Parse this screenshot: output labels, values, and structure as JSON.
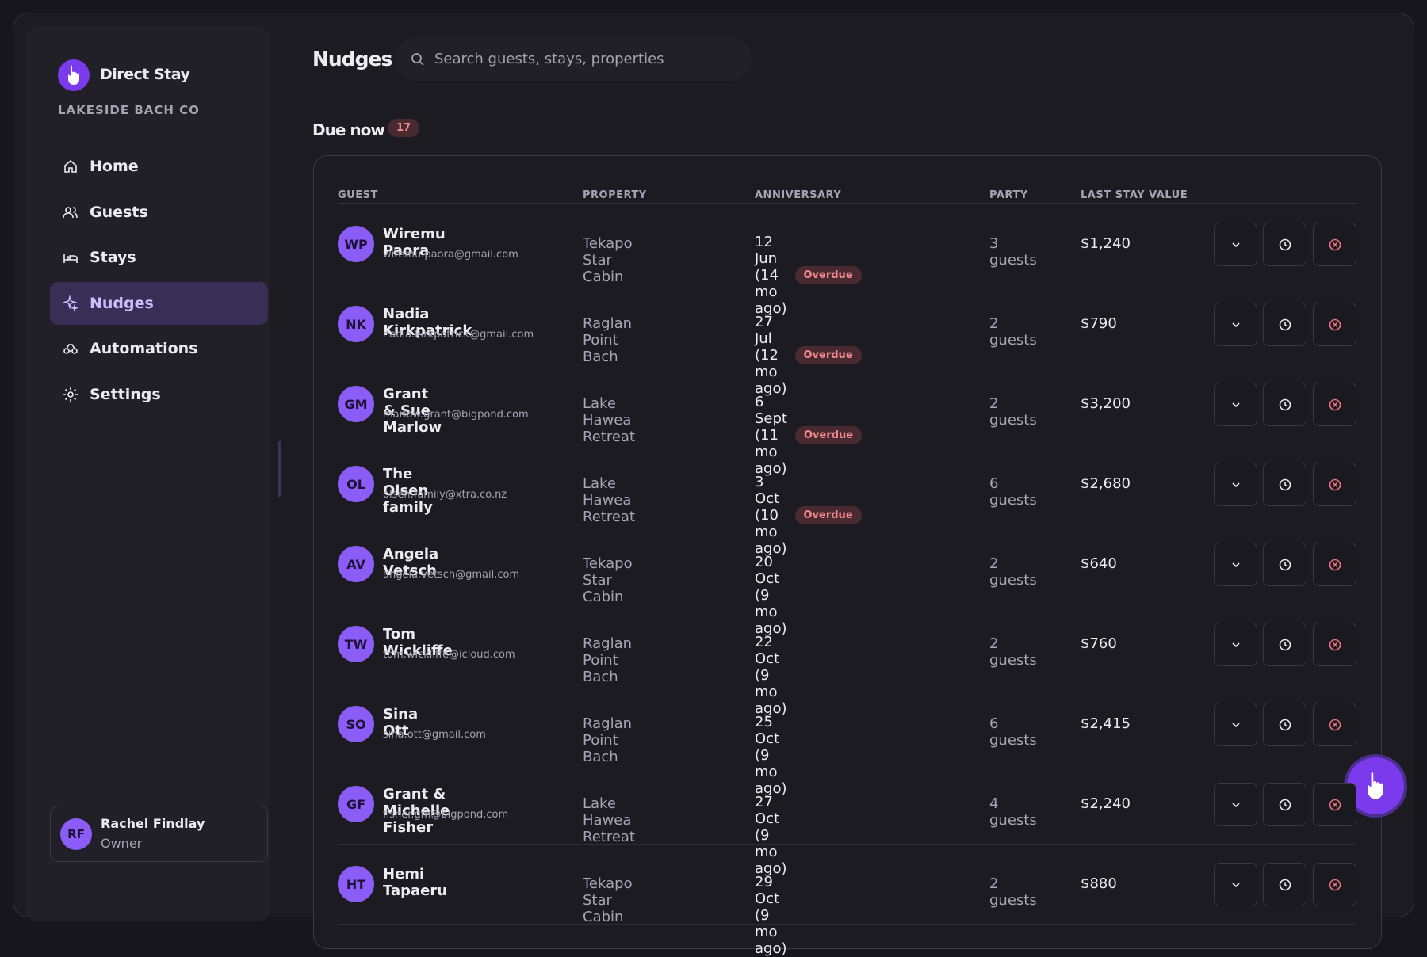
{
  "brand": {
    "name": "Direct Stay",
    "org": "LAKESIDE BACH CO"
  },
  "nav": [
    "Home",
    "Guests",
    "Stays",
    "Nudges",
    "Automations",
    "Settings"
  ],
  "user": {
    "initials": "RF",
    "name": "Rachel Findlay",
    "role": "Owner"
  },
  "page": {
    "title": "Nudges",
    "search_placeholder": "Search guests, stays, properties"
  },
  "section": {
    "title": "Due now",
    "count": "17"
  },
  "table": {
    "columns": [
      "GUEST",
      "PROPERTY",
      "ANNIVERSARY",
      "PARTY",
      "LAST STAY VALUE"
    ],
    "rows": [
      {
        "initials": "WP",
        "name": "Wiremu Paora",
        "email": "wiremu.paora@gmail.com",
        "property": "Tekapo Star Cabin",
        "anniversary": "12 Jun (14 mo ago)",
        "status": "Overdue",
        "party": "3 guests",
        "value": "$1,240"
      },
      {
        "initials": "NK",
        "name": "Nadia Kirkpatrick",
        "email": "nadia.kirkpatrick@gmail.com",
        "property": "Raglan Point Bach",
        "anniversary": "27 Jul (12 mo ago)",
        "status": "Overdue",
        "party": "2 guests",
        "value": "$790"
      },
      {
        "initials": "GM",
        "name": "Grant & Sue Marlow",
        "email": "marlow.grant@bigpond.com",
        "property": "Lake Hawea Retreat",
        "anniversary": "6 Sept (11 mo ago)",
        "status": "Overdue",
        "party": "2 guests",
        "value": "$3,200"
      },
      {
        "initials": "OL",
        "name": "The Olsen family",
        "email": "olsen.family@xtra.co.nz",
        "property": "Lake Hawea Retreat",
        "anniversary": "3 Oct (10 mo ago)",
        "status": "Overdue",
        "party": "6 guests",
        "value": "$2,680"
      },
      {
        "initials": "AV",
        "name": "Angela Vetsch",
        "email": "angela.vetsch@gmail.com",
        "property": "Tekapo Star Cabin",
        "anniversary": "20 Oct (9 mo ago)",
        "party": "2 guests",
        "value": "$640"
      },
      {
        "initials": "TW",
        "name": "Tom Wickliffe",
        "email": "tom.wickliffe@icloud.com",
        "property": "Raglan Point Bach",
        "anniversary": "22 Oct (9 mo ago)",
        "party": "2 guests",
        "value": "$760"
      },
      {
        "initials": "SO",
        "name": "Sina Ott",
        "email": "sina.ott@gmail.com",
        "property": "Raglan Point Bach",
        "anniversary": "25 Oct (9 mo ago)",
        "party": "6 guests",
        "value": "$2,415"
      },
      {
        "initials": "GF",
        "name": "Grant & Michelle Fisher",
        "email": "fisher.gm@bigpond.com",
        "property": "Lake Hawea Retreat",
        "anniversary": "27 Oct (9 mo ago)",
        "party": "4 guests",
        "value": "$2,240"
      },
      {
        "initials": "HT",
        "name": "Hemi Tapaeru",
        "property": "Tekapo Star Cabin",
        "anniversary": "29 Oct (9 mo ago)",
        "party": "2 guests",
        "value": "$880"
      }
    ]
  }
}
